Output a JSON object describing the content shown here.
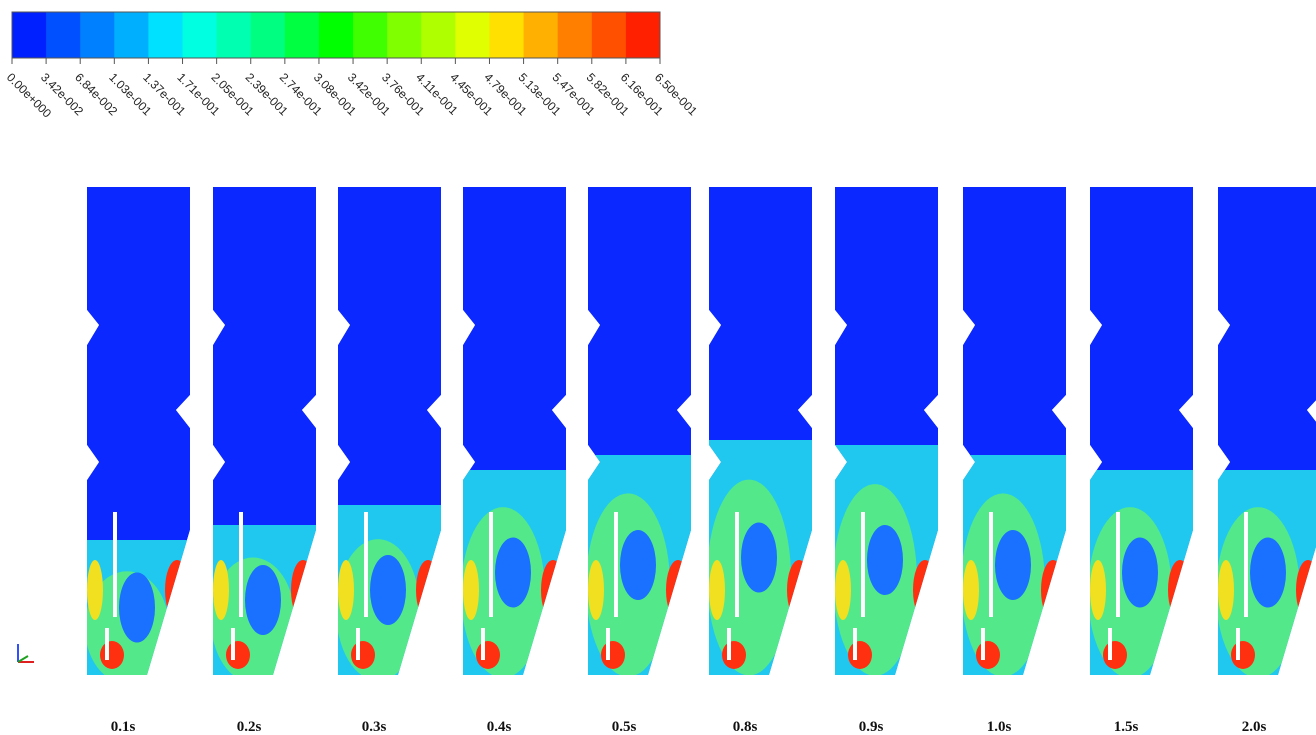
{
  "colorbar": {
    "labels": [
      "0.00e+000",
      "3.42e-002",
      "6.84e-002",
      "1.03e-001",
      "1.37e-001",
      "1.71e-001",
      "2.05e-001",
      "2.39e-001",
      "2.74e-001",
      "3.08e-001",
      "3.42e-001",
      "3.76e-001",
      "4.11e-001",
      "4.45e-001",
      "4.79e-001",
      "5.13e-001",
      "5.47e-001",
      "5.82e-001",
      "6.16e-001",
      "6.50e-001"
    ],
    "colors": [
      "#0020ff",
      "#0050ff",
      "#0080ff",
      "#00b0ff",
      "#00e0ff",
      "#00ffe0",
      "#00ffb0",
      "#00ff80",
      "#00ff40",
      "#00ff00",
      "#40ff00",
      "#80ff00",
      "#b0ff00",
      "#e0ff00",
      "#ffe000",
      "#ffb000",
      "#ff8000",
      "#ff5000",
      "#ff2000"
    ]
  },
  "panels": {
    "labels": [
      "0.1s",
      "0.2s",
      "0.3s",
      "0.4s",
      "0.5s",
      "0.8s",
      "0.9s",
      "1.0s",
      "1.5s",
      "2.0s"
    ]
  }
}
